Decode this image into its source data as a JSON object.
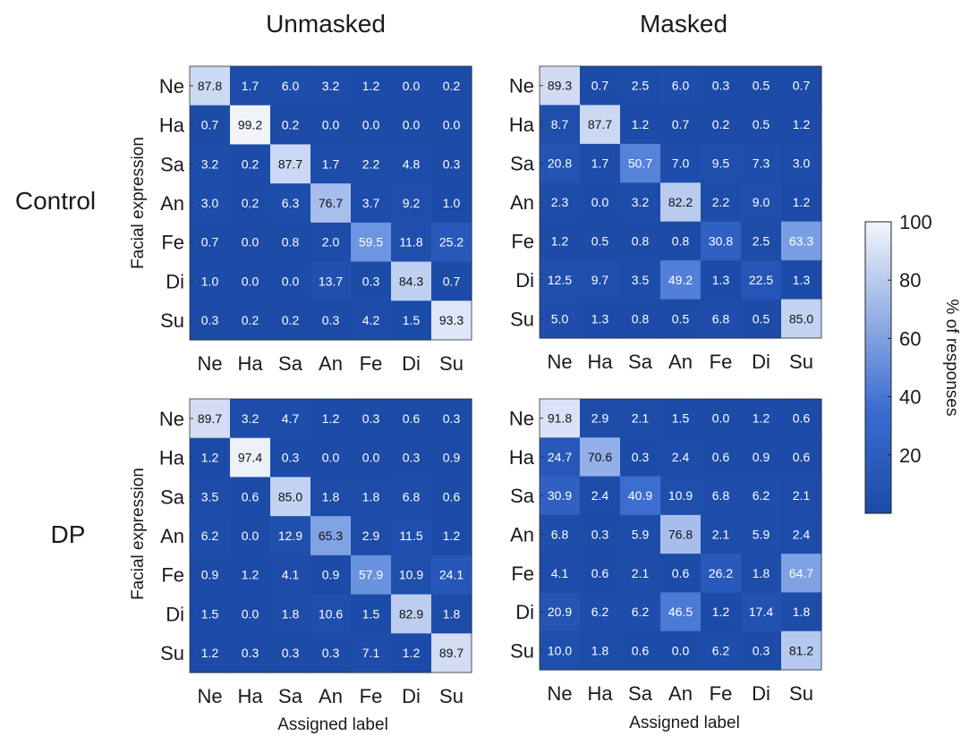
{
  "chart_data": {
    "type": "heatmap",
    "columns_titles": [
      "Unmasked",
      "Masked"
    ],
    "row_titles": [
      "Control",
      "DP"
    ],
    "labels": [
      "Ne",
      "Ha",
      "Sa",
      "An",
      "Fe",
      "Di",
      "Su"
    ],
    "ylabel": "Facial expression",
    "xlabel": "Assigned label",
    "colorbar": {
      "label": "% of responses",
      "ticks": [
        20,
        40,
        60,
        80,
        100
      ],
      "range": [
        0,
        100
      ],
      "low_color": "#1c4ba8",
      "high_color": "#f4f6fb"
    },
    "panels": [
      {
        "group": "Control",
        "condition": "Unmasked",
        "matrix": [
          [
            "87.8",
            "1.7",
            "6.0",
            "3.2",
            "1.2",
            "0.0",
            "0.2"
          ],
          [
            "0.7",
            "99.2",
            "0.2",
            "0.0",
            "0.0",
            "0.0",
            "0.0"
          ],
          [
            "3.2",
            "0.2",
            "87.7",
            "1.7",
            "2.2",
            "4.8",
            "0.3"
          ],
          [
            "3.0",
            "0.2",
            "6.3",
            "76.7",
            "3.7",
            "9.2",
            "1.0"
          ],
          [
            "0.7",
            "0.0",
            "0.8",
            "2.0",
            "59.5",
            "11.8",
            "25.2"
          ],
          [
            "1.0",
            "0.0",
            "0.0",
            "13.7",
            "0.3",
            "84.3",
            "0.7"
          ],
          [
            "0.3",
            "0.2",
            "0.2",
            "0.3",
            "4.2",
            "1.5",
            "93.3"
          ]
        ]
      },
      {
        "group": "Control",
        "condition": "Masked",
        "matrix": [
          [
            "89.3",
            "0.7",
            "2.5",
            "6.0",
            "0.3",
            "0.5",
            "0.7"
          ],
          [
            "8.7",
            "87.7",
            "1.2",
            "0.7",
            "0.2",
            "0.5",
            "1.2"
          ],
          [
            "20.8",
            "1.7",
            "50.7",
            "7.0",
            "9.5",
            "7.3",
            "3.0"
          ],
          [
            "2.3",
            "0.0",
            "3.2",
            "82.2",
            "2.2",
            "9.0",
            "1.2"
          ],
          [
            "1.2",
            "0.5",
            "0.8",
            "0.8",
            "30.8",
            "2.5",
            "63.3"
          ],
          [
            "12.5",
            "9.7",
            "3.5",
            "49.2",
            "1.3",
            "22.5",
            "1.3"
          ],
          [
            "5.0",
            "1.3",
            "0.8",
            "0.5",
            "6.8",
            "0.5",
            "85.0"
          ]
        ]
      },
      {
        "group": "DP",
        "condition": "Unmasked",
        "matrix": [
          [
            "89.7",
            "3.2",
            "4.7",
            "1.2",
            "0.3",
            "0.6",
            "0.3"
          ],
          [
            "1.2",
            "97.4",
            "0.3",
            "0.0",
            "0.0",
            "0.3",
            "0.9"
          ],
          [
            "3.5",
            "0.6",
            "85.0",
            "1.8",
            "1.8",
            "6.8",
            "0.6"
          ],
          [
            "6.2",
            "0.0",
            "12.9",
            "65.3",
            "2.9",
            "11.5",
            "1.2"
          ],
          [
            "0.9",
            "1.2",
            "4.1",
            "0.9",
            "57.9",
            "10.9",
            "24.1"
          ],
          [
            "1.5",
            "0.0",
            "1.8",
            "10.6",
            "1.5",
            "82.9",
            "1.8"
          ],
          [
            "1.2",
            "0.3",
            "0.3",
            "0.3",
            "7.1",
            "1.2",
            "89.7"
          ]
        ]
      },
      {
        "group": "DP",
        "condition": "Masked",
        "matrix": [
          [
            "91.8",
            "2.9",
            "2.1",
            "1.5",
            "0.0",
            "1.2",
            "0.6"
          ],
          [
            "24.7",
            "70.6",
            "0.3",
            "2.4",
            "0.6",
            "0.9",
            "0.6"
          ],
          [
            "30.9",
            "2.4",
            "40.9",
            "10.9",
            "6.8",
            "6.2",
            "2.1"
          ],
          [
            "6.8",
            "0.3",
            "5.9",
            "76.8",
            "2.1",
            "5.9",
            "2.4"
          ],
          [
            "4.1",
            "0.6",
            "2.1",
            "0.6",
            "26.2",
            "1.8",
            "64.7"
          ],
          [
            "20.9",
            "6.2",
            "6.2",
            "46.5",
            "1.2",
            "17.4",
            "1.8"
          ],
          [
            "10.0",
            "1.8",
            "0.6",
            "0.0",
            "6.2",
            "0.3",
            "81.2"
          ]
        ]
      }
    ]
  }
}
